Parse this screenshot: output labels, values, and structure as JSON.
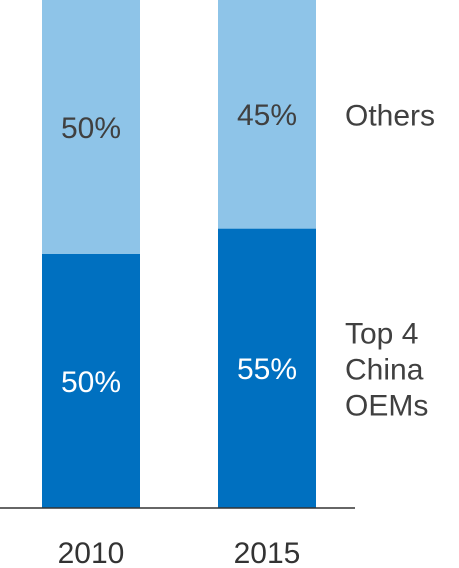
{
  "chart_data": {
    "type": "bar",
    "stacked": true,
    "normalized": true,
    "categories": [
      "2010",
      "2015"
    ],
    "series": [
      {
        "name": "Top 4 China OEMs",
        "name_lines": [
          "Top 4",
          "China",
          "OEMs"
        ],
        "values": [
          50,
          55
        ],
        "labels": [
          "50%",
          "55%"
        ],
        "color": "#0070C0",
        "label_color": "#ffffff"
      },
      {
        "name": "Others",
        "name_lines": [
          "Others"
        ],
        "values": [
          50,
          45
        ],
        "labels": [
          "50%",
          "45%"
        ],
        "color": "#8EC4E8",
        "label_color": "#404040"
      }
    ],
    "ylim": [
      0,
      100
    ],
    "grid": false,
    "legend": "right"
  }
}
